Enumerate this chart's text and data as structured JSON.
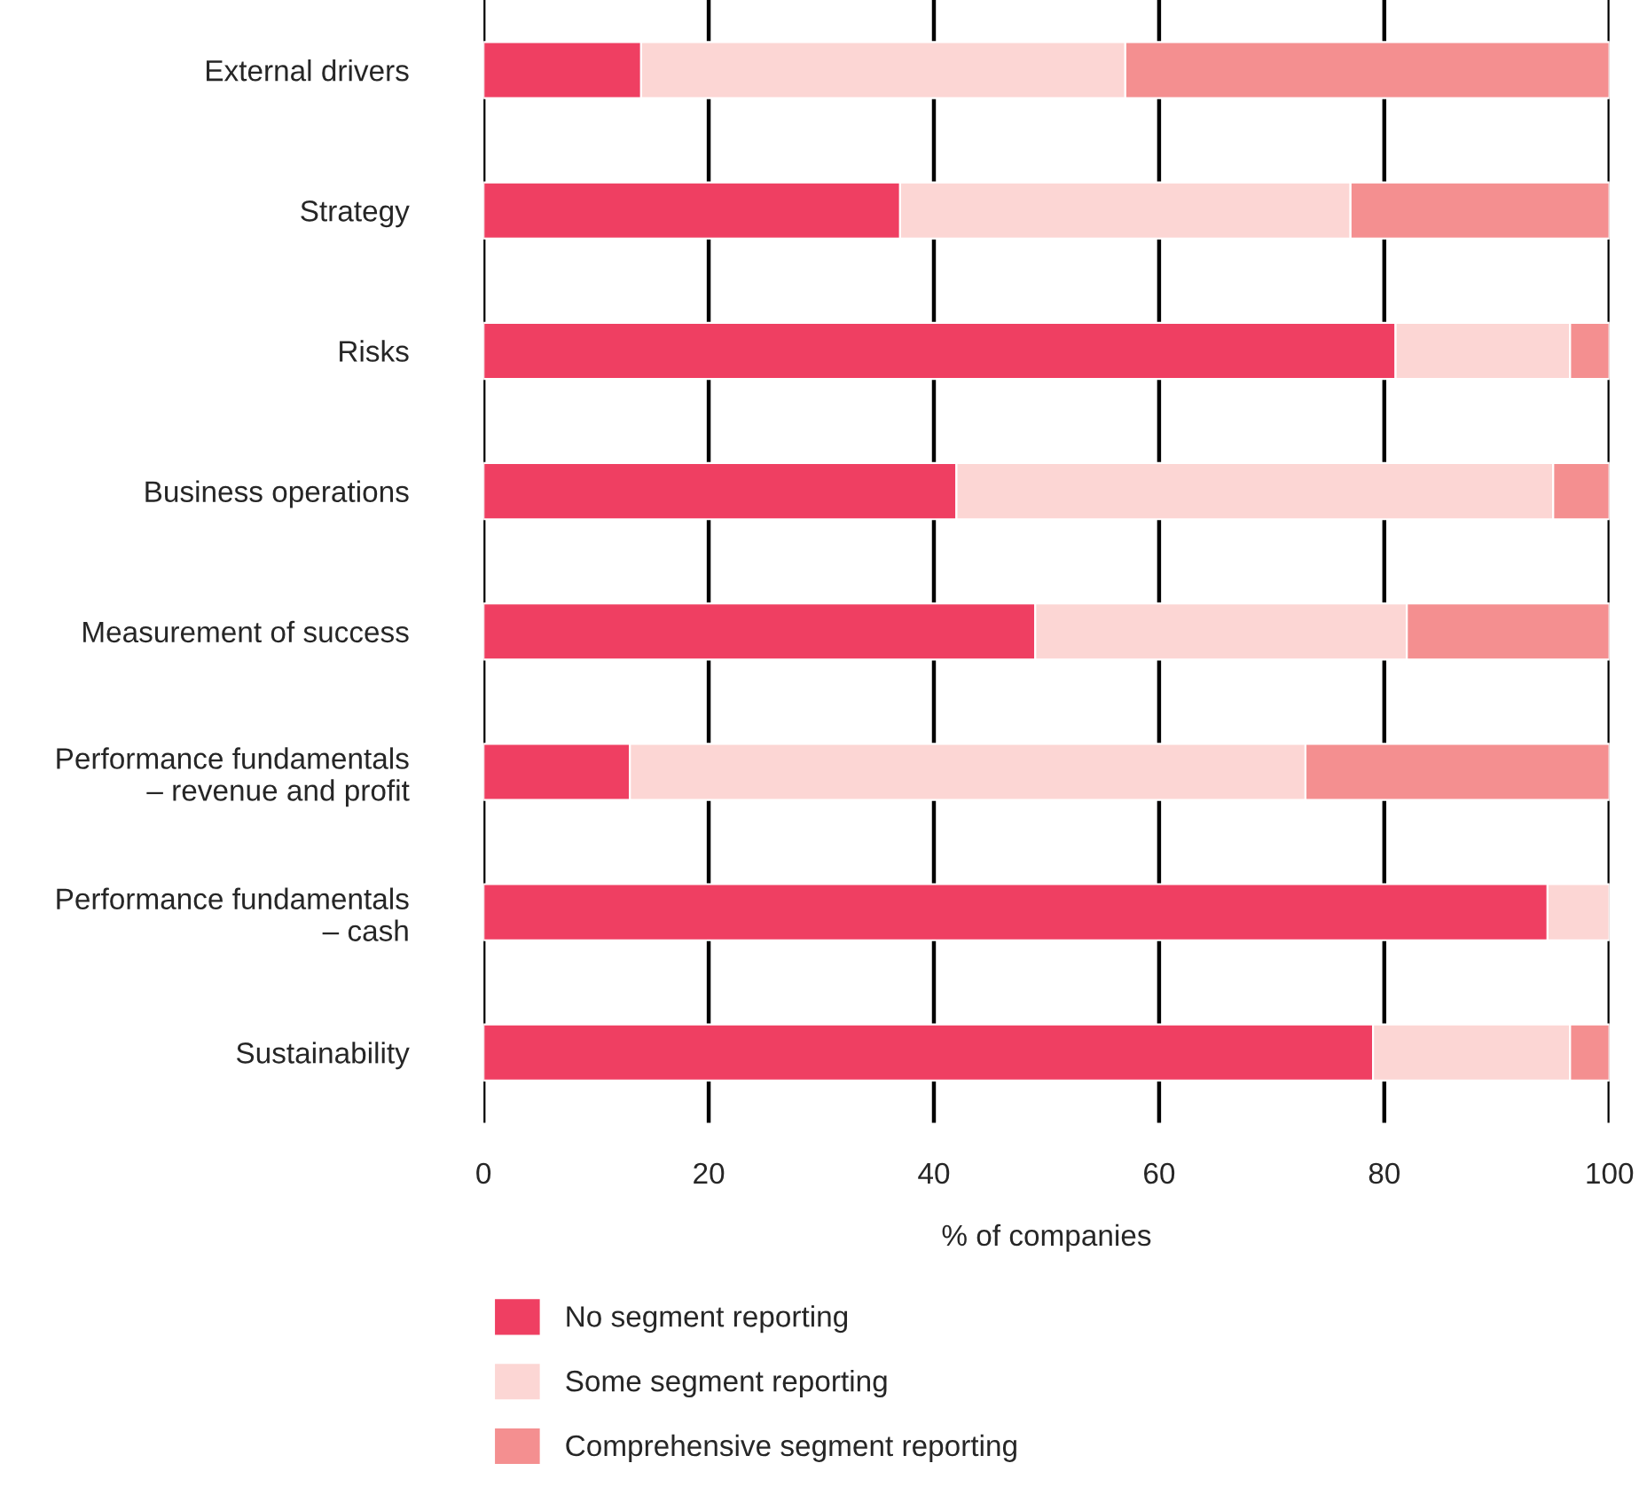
{
  "chart_data": {
    "type": "bar",
    "orientation": "horizontal",
    "stacked": true,
    "xlabel": "% of companies",
    "categories": [
      "External drivers",
      "Strategy",
      "Risks",
      "Business operations",
      "Measurement of success",
      "Performance fundamentals\n– revenue and profit",
      "Performance fundamentals\n– cash",
      "Sustainability"
    ],
    "series": [
      {
        "name": "No segment reporting",
        "color": "#ef3f62",
        "values": [
          14,
          37,
          81,
          42,
          49,
          13,
          94.5,
          79
        ]
      },
      {
        "name": "Some segment reporting",
        "color": "#fcd6d4",
        "values": [
          43,
          40,
          15.5,
          53,
          33,
          60,
          5.5,
          17.5
        ]
      },
      {
        "name": "Comprehensive segment reporting",
        "color": "#f48f90",
        "values": [
          43,
          23,
          3.5,
          5,
          18,
          27,
          null,
          3.5
        ]
      }
    ],
    "xlim": [
      0,
      100
    ],
    "xticks": [
      0,
      20,
      40,
      60,
      80,
      100
    ],
    "grid": "x",
    "legend": "bottom left"
  }
}
